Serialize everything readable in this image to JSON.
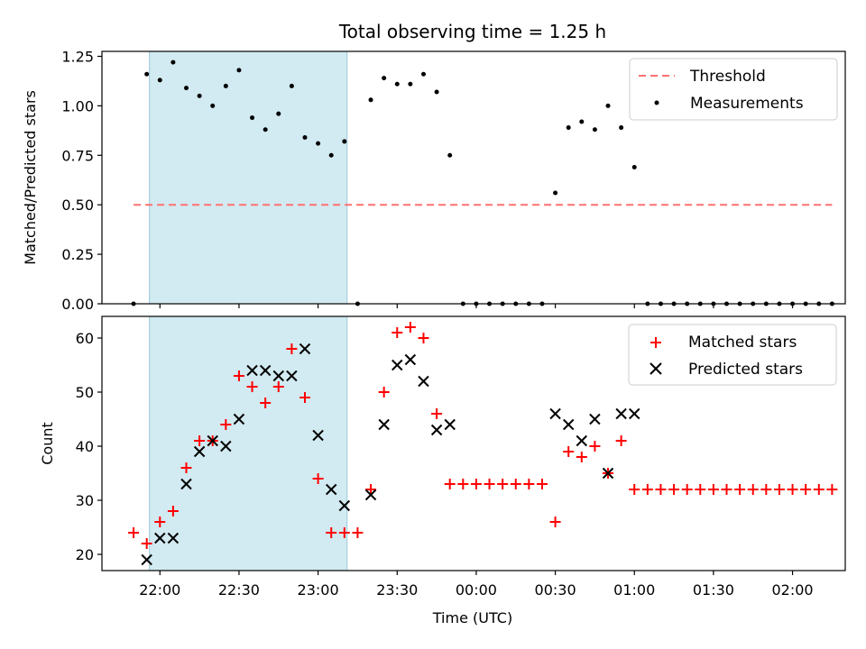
{
  "chart_data": {
    "title": "Total observing time = 1.25 h",
    "xlabel": "Time (UTC)",
    "x_tick_labels": [
      "22:00",
      "22:30",
      "23:00",
      "23:30",
      "00:00",
      "00:30",
      "01:00",
      "01:30",
      "02:00"
    ],
    "x_ticks_minutes_from_22_00": [
      0,
      30,
      60,
      90,
      120,
      150,
      180,
      210,
      240
    ],
    "xlim_minutes_from_22_00": [
      -22,
      260
    ],
    "shaded_interval_minutes_from_22_00": [
      -4,
      71
    ],
    "shaded_color": "#add8e6",
    "charts": [
      {
        "type": "scatter",
        "ylabel": "Matched/Predicted stars",
        "ylim": [
          0,
          1.275
        ],
        "y_ticks": [
          0.0,
          0.25,
          0.5,
          0.75,
          1.0,
          1.25
        ],
        "y_tick_labels": [
          "0.00",
          "0.25",
          "0.50",
          "0.75",
          "1.00",
          "1.25"
        ],
        "threshold": {
          "name": "Threshold",
          "value": 0.5,
          "x_range_minutes": [
            -10,
            255
          ],
          "color": "#ff6666",
          "style": "dashed"
        },
        "legend_position": "top-right",
        "series": [
          {
            "name": "Measurements",
            "color": "#000000",
            "marker": "dot",
            "x": [
              -10,
              -5,
              0,
              5,
              10,
              15,
              20,
              25,
              30,
              35,
              40,
              45,
              50,
              55,
              60,
              65,
              70,
              75,
              80,
              85,
              90,
              95,
              100,
              105,
              110,
              115,
              120,
              125,
              130,
              135,
              140,
              145,
              150,
              155,
              160,
              165,
              170,
              175,
              180,
              185,
              190,
              195,
              200,
              205,
              210,
              215,
              220,
              225,
              230,
              235,
              240,
              245,
              250,
              255
            ],
            "values": [
              0,
              1.16,
              1.13,
              1.22,
              1.09,
              1.05,
              1.0,
              1.1,
              1.18,
              0.94,
              0.88,
              0.96,
              1.1,
              0.84,
              0.81,
              0.75,
              0.82,
              0,
              1.03,
              1.14,
              1.11,
              1.11,
              1.16,
              1.07,
              0.75,
              0,
              0,
              0,
              0,
              0,
              0,
              0,
              0.56,
              0.89,
              0.92,
              0.88,
              1.0,
              0.89,
              0.69,
              0,
              0,
              0,
              0,
              0,
              0,
              0,
              0,
              0,
              0,
              0,
              0,
              0,
              0,
              0
            ]
          }
        ]
      },
      {
        "type": "scatter",
        "ylabel": "Count",
        "ylim": [
          17,
          64
        ],
        "y_ticks": [
          20,
          30,
          40,
          50,
          60
        ],
        "y_tick_labels": [
          "20",
          "30",
          "40",
          "50",
          "60"
        ],
        "legend_position": "top-right",
        "series": [
          {
            "name": "Matched stars",
            "color": "#ff0000",
            "marker": "plus",
            "x": [
              -10,
              -5,
              0,
              5,
              10,
              15,
              20,
              25,
              30,
              35,
              40,
              45,
              50,
              55,
              60,
              65,
              70,
              75,
              80,
              85,
              90,
              95,
              100,
              105,
              110,
              115,
              120,
              125,
              130,
              135,
              140,
              145,
              150,
              155,
              160,
              165,
              170,
              175,
              180,
              185,
              190,
              195,
              200,
              205,
              210,
              215,
              220,
              225,
              230,
              235,
              240,
              245,
              250,
              255
            ],
            "values": [
              24,
              22,
              26,
              28,
              36,
              41,
              41,
              44,
              53,
              51,
              48,
              51,
              58,
              49,
              34,
              24,
              24,
              24,
              32,
              50,
              61,
              62,
              60,
              46,
              33,
              33,
              33,
              33,
              33,
              33,
              33,
              33,
              26,
              39,
              38,
              40,
              35,
              41,
              32,
              32,
              32,
              32,
              32,
              32,
              32,
              32,
              32,
              32,
              32,
              32,
              32,
              32,
              32,
              32
            ]
          },
          {
            "name": "Predicted stars",
            "color": "#000000",
            "marker": "x",
            "x": [
              -5,
              0,
              5,
              10,
              15,
              20,
              25,
              30,
              35,
              40,
              45,
              50,
              55,
              60,
              65,
              70,
              80,
              85,
              90,
              95,
              100,
              105,
              110,
              150,
              155,
              160,
              165,
              170,
              175,
              180
            ],
            "values": [
              19,
              23,
              23,
              33,
              39,
              41,
              40,
              45,
              54,
              54,
              53,
              53,
              58,
              42,
              32,
              29,
              31,
              44,
              55,
              56,
              52,
              43,
              44,
              46,
              44,
              41,
              45,
              35,
              46,
              46
            ]
          }
        ]
      }
    ]
  }
}
